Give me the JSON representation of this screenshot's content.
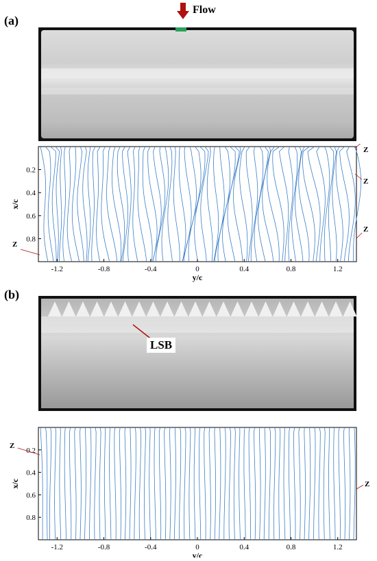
{
  "figure": {
    "panels": [
      {
        "label": "(a)",
        "photo_annotation": "Flow",
        "plot_markers": [
          "Z",
          "Z",
          "Z",
          "Z"
        ]
      },
      {
        "label": "(b)",
        "photo_annotation": "LSB",
        "plot_markers": [
          "Z",
          "Z"
        ]
      }
    ]
  },
  "chart_data": [
    {
      "type": "line",
      "description_source": "panel (a) surface streamlines",
      "xlabel": "y/c",
      "ylabel": "x/c",
      "xticks": [
        "-1.2",
        "-0.8",
        "-0.4",
        "0",
        "0.4",
        "0.8",
        "1.2"
      ],
      "yticks": [
        "0.2",
        "0.4",
        "0.6",
        "0.8"
      ],
      "xlim": [
        -1.36,
        1.36
      ],
      "ylim": [
        0,
        1
      ],
      "y_inverted": true,
      "line_color": "#3b7ec6",
      "grid": false
    },
    {
      "type": "line",
      "description_source": "panel (b) surface streamlines",
      "xlabel": "y/c",
      "ylabel": "x/c",
      "xticks": [
        "-1.2",
        "-0.8",
        "-0.4",
        "0",
        "0.4",
        "0.8",
        "1.2"
      ],
      "yticks": [
        "0.2",
        "0.4",
        "0.6",
        "0.8"
      ],
      "xlim": [
        -1.36,
        1.36
      ],
      "ylim": [
        0,
        1
      ],
      "y_inverted": true,
      "line_color": "#3b7ec6",
      "grid": false
    }
  ]
}
